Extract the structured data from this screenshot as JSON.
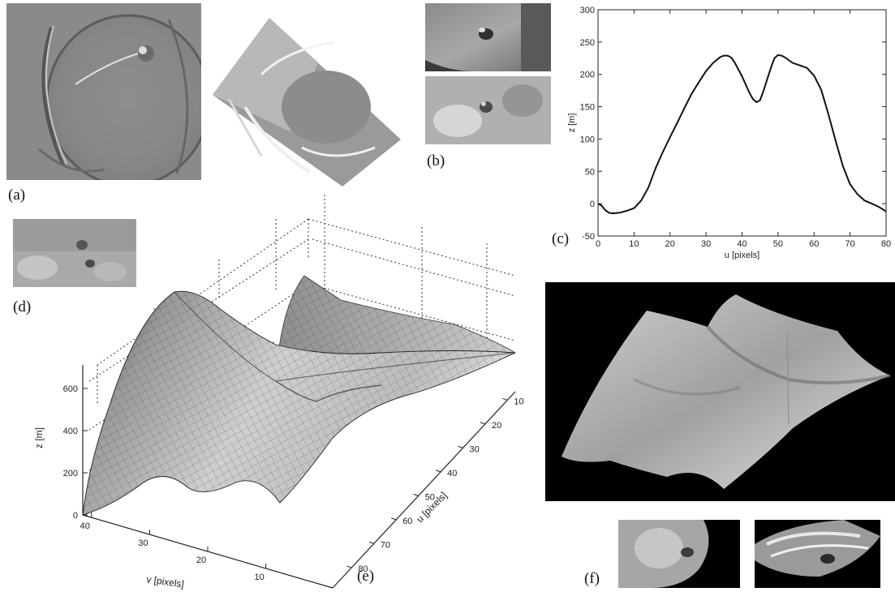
{
  "panels": {
    "a": "(a)",
    "b": "(b)",
    "c": "(c)",
    "d": "(d)",
    "e": "(e)",
    "f": "(f)"
  },
  "chart_data": [
    {
      "type": "line",
      "panel": "(c)",
      "xlabel": "u [pixels]",
      "ylabel": "z [m]",
      "xlim": [
        0,
        80
      ],
      "ylim": [
        -50,
        300
      ],
      "xticks": [
        0,
        10,
        20,
        30,
        40,
        50,
        60,
        70,
        80
      ],
      "yticks": [
        -50,
        0,
        50,
        100,
        150,
        200,
        250,
        300
      ],
      "grid": false,
      "x": [
        0,
        1,
        2,
        3,
        4,
        6,
        8,
        10,
        12,
        14,
        16,
        18,
        20,
        22,
        24,
        26,
        28,
        30,
        32,
        34,
        35,
        36,
        37,
        38,
        40,
        42,
        43,
        44,
        45,
        46,
        48,
        49,
        50,
        51,
        52,
        54,
        56,
        58,
        60,
        62,
        64,
        66,
        68,
        70,
        72,
        74,
        76,
        78,
        80
      ],
      "values": [
        0,
        -3,
        -10,
        -14,
        -15,
        -14,
        -11,
        -7,
        5,
        25,
        55,
        80,
        103,
        125,
        148,
        170,
        188,
        205,
        218,
        227,
        229,
        229,
        226,
        218,
        197,
        172,
        162,
        157,
        160,
        175,
        210,
        225,
        230,
        229,
        226,
        218,
        214,
        210,
        198,
        176,
        138,
        97,
        58,
        30,
        15,
        5,
        0,
        -5,
        -12
      ]
    },
    {
      "type": "surface",
      "panel": "(e)",
      "xlabel": "u [pixels]",
      "ylabel": "v [pixels]",
      "zlabel": "z [m]",
      "u_ticks": [
        10,
        20,
        30,
        40,
        50,
        60,
        70,
        80
      ],
      "v_ticks": [
        40,
        30,
        20,
        10
      ],
      "z_ticks": [
        0,
        200,
        400,
        600
      ],
      "grid": true
    }
  ]
}
